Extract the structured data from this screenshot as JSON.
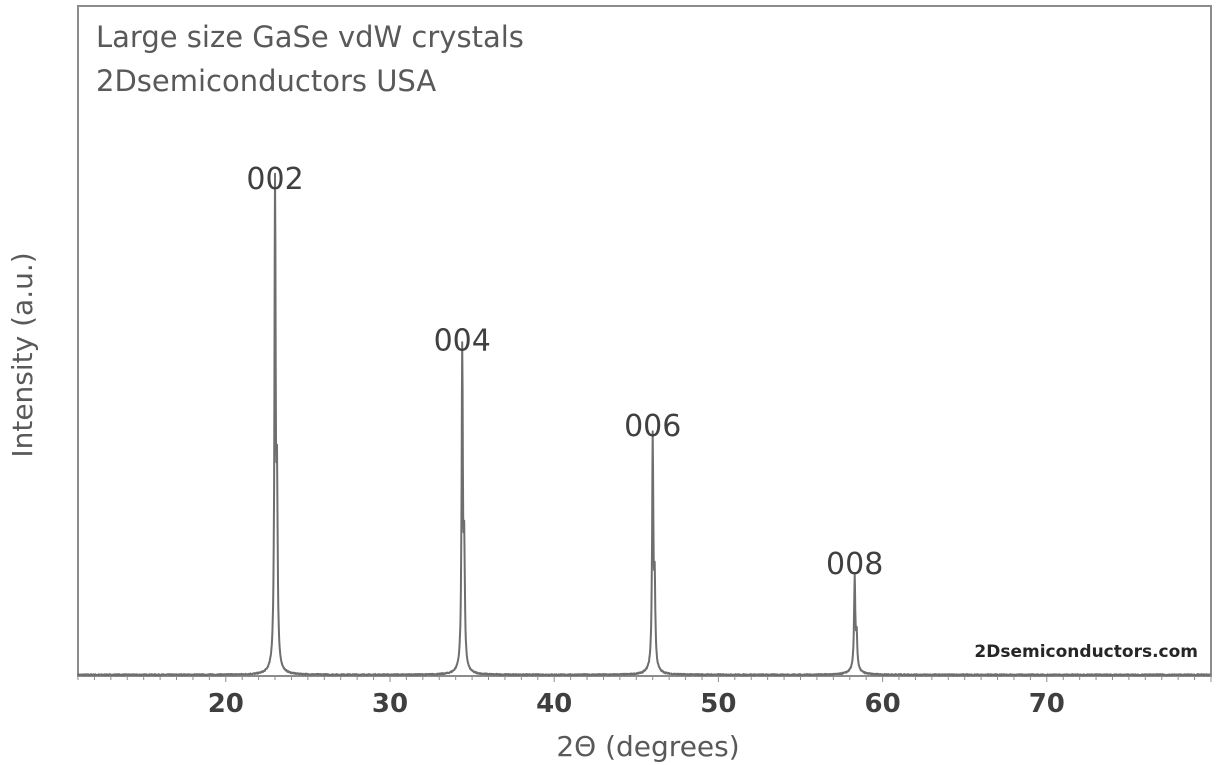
{
  "chart_data": {
    "type": "line",
    "title": "Large size GaSe vdW crystals",
    "subtitle": "2Dsemiconductors USA",
    "xlabel": "2Θ (degrees)",
    "ylabel": "Intensity (a.u.)",
    "xlim": [
      11,
      80
    ],
    "ylim": [
      0,
      100
    ],
    "xticks": [
      20,
      30,
      40,
      50,
      60,
      70
    ],
    "grid": false,
    "legend": "none",
    "watermark": "2Dsemiconductors.com",
    "line_color": "#6e6e6e",
    "peaks": [
      {
        "label": "002",
        "x": 23.0,
        "y": 100
      },
      {
        "label": "004",
        "x": 34.4,
        "y": 66
      },
      {
        "label": "006",
        "x": 46.0,
        "y": 48
      },
      {
        "label": "008",
        "x": 58.3,
        "y": 19
      }
    ]
  }
}
